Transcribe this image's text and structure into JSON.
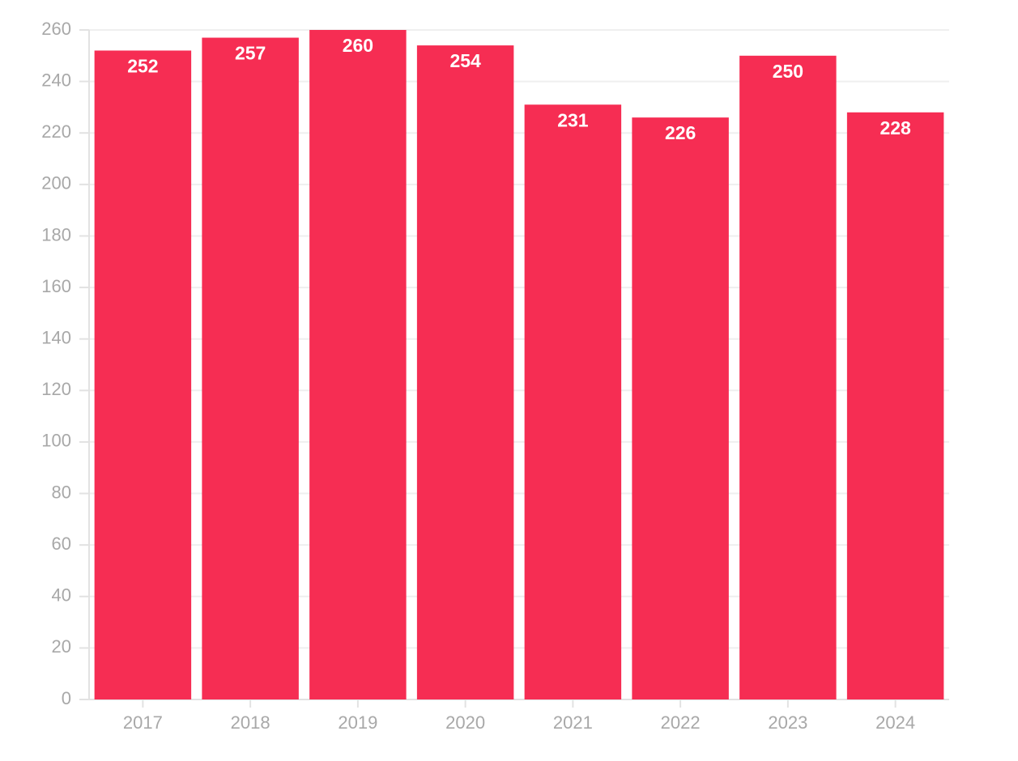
{
  "chart_data": {
    "type": "bar",
    "categories": [
      "2017",
      "2018",
      "2019",
      "2020",
      "2021",
      "2022",
      "2023",
      "2024"
    ],
    "values": [
      252,
      257,
      260,
      254,
      231,
      226,
      250,
      228
    ],
    "color": "#f62d53",
    "ylim": [
      0,
      260
    ],
    "yticks": [
      0,
      20,
      40,
      60,
      80,
      100,
      120,
      140,
      160,
      180,
      200,
      220,
      240,
      260
    ],
    "grid": true
  }
}
